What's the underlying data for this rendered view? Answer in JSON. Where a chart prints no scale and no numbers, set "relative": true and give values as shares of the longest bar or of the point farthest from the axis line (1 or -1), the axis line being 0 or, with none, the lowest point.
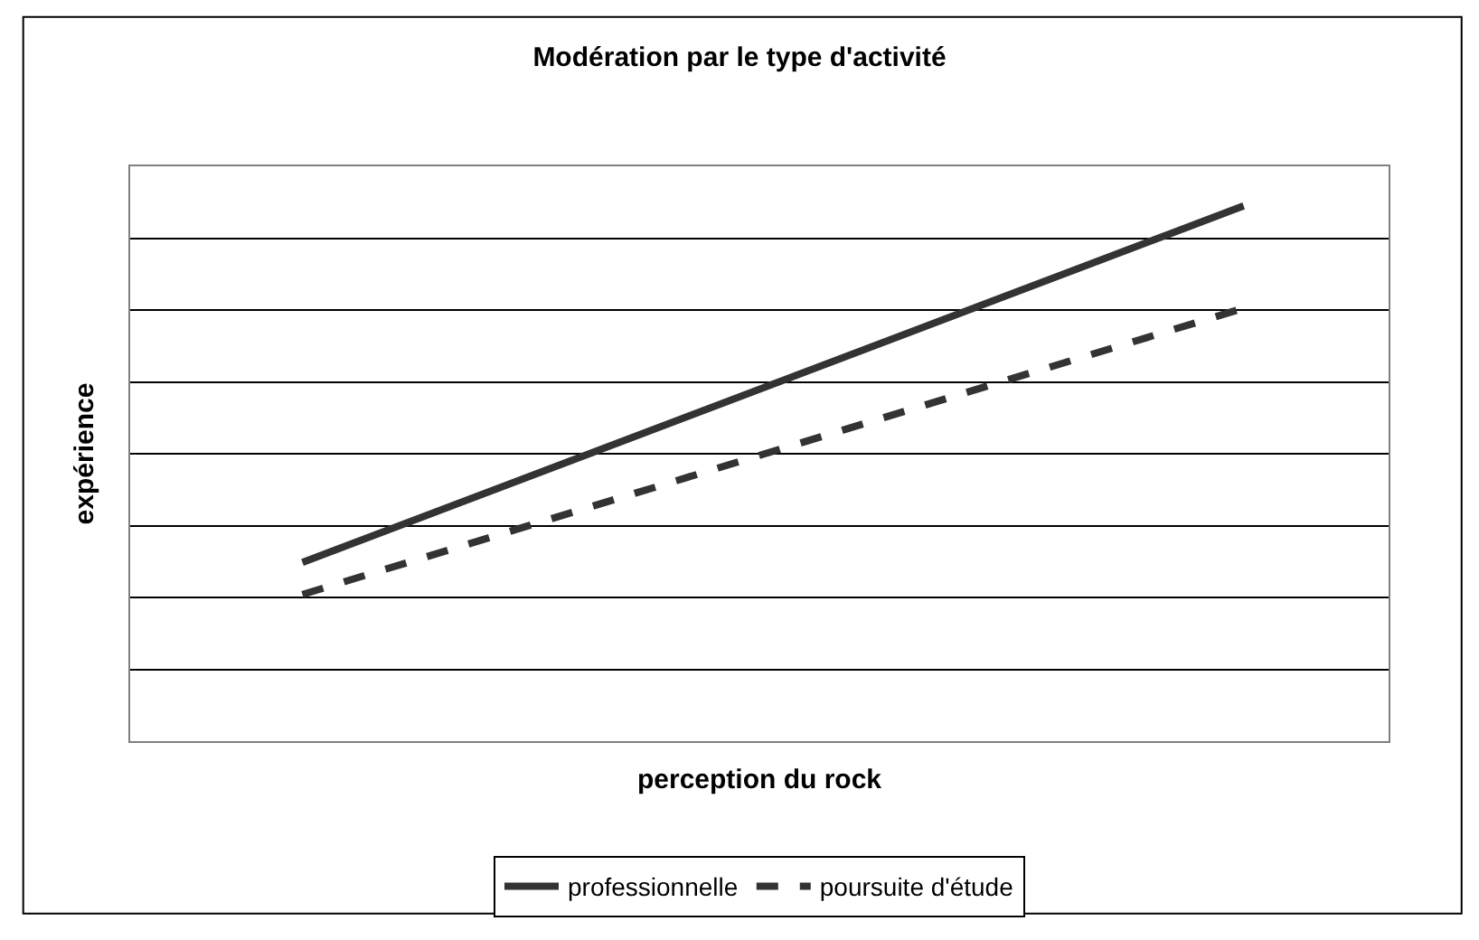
{
  "chart_data": {
    "type": "line",
    "title": "Modération par le type d'activité",
    "xlabel": "perception du rock",
    "ylabel": "expérience",
    "relative": true,
    "categories": [
      null,
      null
    ],
    "grid": "y",
    "legend": "bottom",
    "marker": "none",
    "tick_labels": false,
    "series": [
      {
        "name": "professionnelle",
        "color": "#333333",
        "line_style": "solid",
        "values": [
          0.334,
          1
        ]
      },
      {
        "name": "poursuite d'étude",
        "color": "#333333",
        "line_style": "dashed",
        "values": [
          0.274,
          0.809
        ]
      }
    ]
  }
}
